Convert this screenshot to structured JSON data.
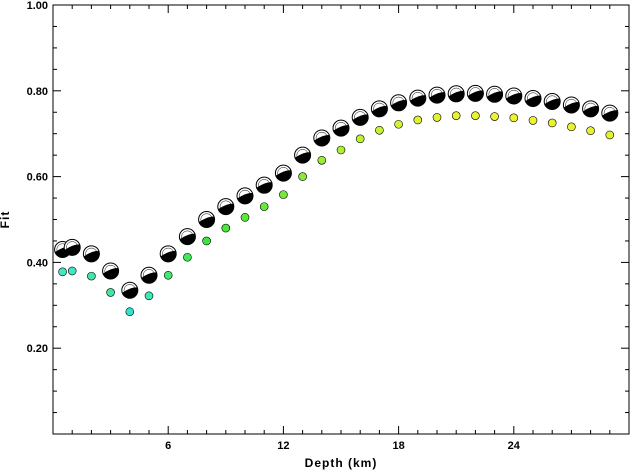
{
  "chart_data": {
    "type": "scatter",
    "title": "",
    "xlabel": "Depth (km)",
    "ylabel": "Fit",
    "xlim": [
      0,
      30
    ],
    "ylim": [
      0,
      1.0
    ],
    "x_ticks": [
      6,
      12,
      18,
      24
    ],
    "x_tick_labels": [
      "6",
      "12",
      "18",
      "24"
    ],
    "y_ticks": [
      0.2,
      0.4,
      0.6,
      0.8,
      1.0
    ],
    "y_tick_labels": [
      "0.20",
      "0.40",
      "0.60",
      "0.80",
      "1.00"
    ],
    "grid": false,
    "series": [
      {
        "marker": "focal-mechanism-beachball",
        "x": [
          0.5,
          1,
          2,
          3,
          4,
          5,
          6,
          7,
          8,
          9,
          10,
          11,
          12,
          13,
          14,
          15,
          16,
          17,
          18,
          19,
          20,
          21,
          22,
          23,
          24,
          25,
          26,
          27,
          28,
          29
        ],
        "y": [
          0.43,
          0.435,
          0.42,
          0.38,
          0.335,
          0.37,
          0.42,
          0.46,
          0.5,
          0.53,
          0.555,
          0.58,
          0.608,
          0.65,
          0.69,
          0.713,
          0.738,
          0.758,
          0.772,
          0.783,
          0.79,
          0.793,
          0.794,
          0.792,
          0.788,
          0.782,
          0.775,
          0.767,
          0.758,
          0.748
        ]
      },
      {
        "marker": "circle",
        "x": [
          0.5,
          1,
          2,
          3,
          4,
          5,
          6,
          7,
          8,
          9,
          10,
          11,
          12,
          13,
          14,
          15,
          16,
          17,
          18,
          19,
          20,
          21,
          22,
          23,
          24,
          25,
          26,
          27,
          28,
          29
        ],
        "y": [
          0.378,
          0.38,
          0.368,
          0.33,
          0.285,
          0.322,
          0.37,
          0.412,
          0.45,
          0.48,
          0.505,
          0.53,
          0.558,
          0.6,
          0.638,
          0.662,
          0.688,
          0.708,
          0.722,
          0.732,
          0.738,
          0.742,
          0.742,
          0.74,
          0.737,
          0.731,
          0.725,
          0.716,
          0.707,
          0.697
        ],
        "colors": [
          "#3fe7c3",
          "#3fe7c3",
          "#40e7a8",
          "#40e7a0",
          "#33e3d0",
          "#3fe7b6",
          "#44e770",
          "#40e858",
          "#39e83f",
          "#4ae83a",
          "#5ae93a",
          "#66e93a",
          "#77ea37",
          "#88ec35",
          "#99ee33",
          "#aaf033",
          "#bbf233",
          "#caf233",
          "#d4f233",
          "#dcf233",
          "#e3f233",
          "#e8f233",
          "#ebf233",
          "#eef233",
          "#eff233",
          "#eef233",
          "#ebf233",
          "#e8f233",
          "#e5f233",
          "#e2f233"
        ]
      }
    ]
  }
}
